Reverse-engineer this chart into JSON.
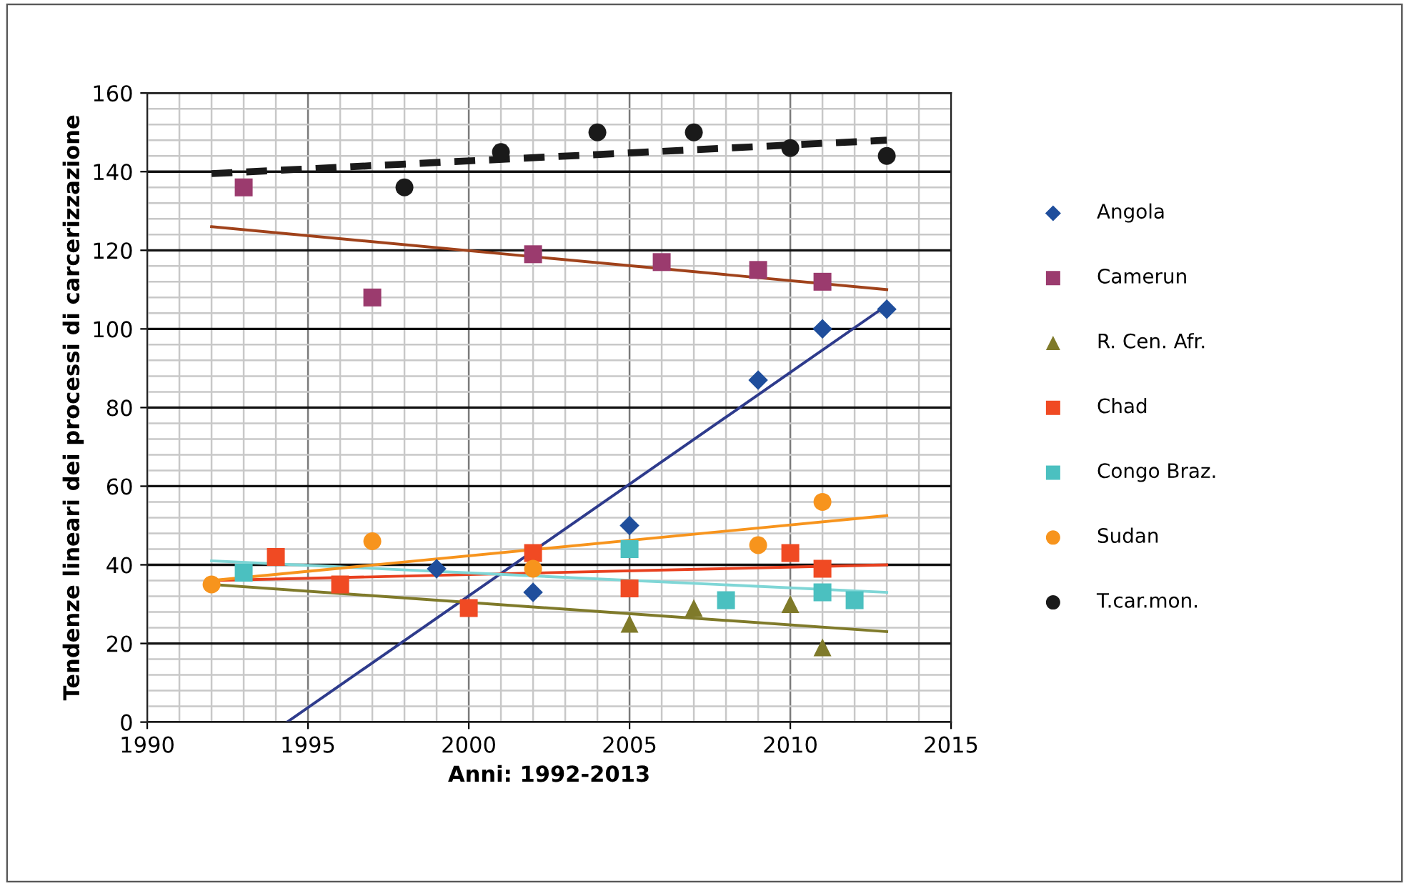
{
  "chart_data": {
    "type": "scatter",
    "xlabel": "Anni: 1992-2013",
    "ylabel": "Tendenze lineari dei processi di carcerizzazione",
    "xlim": [
      1990,
      2015
    ],
    "xticks": [
      1990,
      1995,
      2000,
      2005,
      2010,
      2015
    ],
    "ylim": [
      0,
      160
    ],
    "yticks": [
      0,
      20,
      40,
      60,
      80,
      100,
      120,
      140,
      160
    ],
    "grid": true,
    "legend": "right",
    "series": [
      {
        "name": "Angola",
        "color": "#1f4e9c",
        "marker": "diamond",
        "x": [
          1999,
          2002,
          2005,
          2009,
          2011,
          2013
        ],
        "values": [
          39,
          33,
          50,
          87,
          100,
          105
        ]
      },
      {
        "name": "Camerun",
        "color": "#9b3b6e",
        "marker": "square",
        "x": [
          1993,
          1997,
          2002,
          2006,
          2009,
          2011
        ],
        "values": [
          136,
          108,
          119,
          117,
          115,
          112
        ]
      },
      {
        "name": "R. Cen. Afr.",
        "color": "#7f7a2a",
        "marker": "triangle",
        "x": [
          2005,
          2007,
          2010,
          2011
        ],
        "values": [
          25,
          29,
          30,
          19
        ]
      },
      {
        "name": "Chad",
        "color": "#f04a23",
        "marker": "square",
        "x": [
          1994,
          1996,
          2000,
          2002,
          2005,
          2010,
          2011
        ],
        "values": [
          42,
          35,
          29,
          43,
          34,
          43,
          39
        ]
      },
      {
        "name": "Congo Braz.",
        "color": "#4bc0c0",
        "marker": "square",
        "x": [
          1993,
          2005,
          2008,
          2011,
          2012
        ],
        "values": [
          38,
          44,
          31,
          33,
          31
        ]
      },
      {
        "name": "Sudan",
        "color": "#f7941d",
        "marker": "circle",
        "x": [
          1992,
          1997,
          2002,
          2009,
          2011
        ],
        "values": [
          35,
          46,
          39,
          45,
          56
        ]
      },
      {
        "name": "T.car.mon.",
        "color": "#1a1a1a",
        "marker": "circle",
        "x": [
          1998,
          2001,
          2004,
          2007,
          2010,
          2013
        ],
        "values": [
          136,
          145,
          150,
          150,
          146,
          144
        ]
      },
      {
        "type": "line",
        "color": "#2e3b8c",
        "line_style": "solid",
        "x": [
          1994.35,
          2013
        ],
        "values": [
          0,
          106
        ]
      },
      {
        "type": "line",
        "color": "#a0421b",
        "line_style": "solid",
        "x": [
          1992,
          2013
        ],
        "values": [
          126,
          110
        ]
      },
      {
        "type": "line",
        "color": "#7f7a2a",
        "line_style": "solid",
        "x": [
          1992,
          2013
        ],
        "values": [
          35,
          23
        ]
      },
      {
        "type": "line",
        "color": "#e8401f",
        "line_style": "solid",
        "x": [
          1992,
          2013
        ],
        "values": [
          36,
          40
        ]
      },
      {
        "type": "line",
        "color": "#7fd6d6",
        "line_style": "solid",
        "x": [
          1992,
          2013
        ],
        "values": [
          41,
          33
        ]
      },
      {
        "type": "line",
        "color": "#f7941d",
        "line_style": "solid",
        "x": [
          1992,
          2013
        ],
        "values": [
          36,
          52.5
        ]
      },
      {
        "type": "line",
        "color": "#1a1a1a",
        "line_style": "dashed",
        "x": [
          1992,
          2013
        ],
        "values": [
          139.5,
          148
        ]
      }
    ]
  }
}
